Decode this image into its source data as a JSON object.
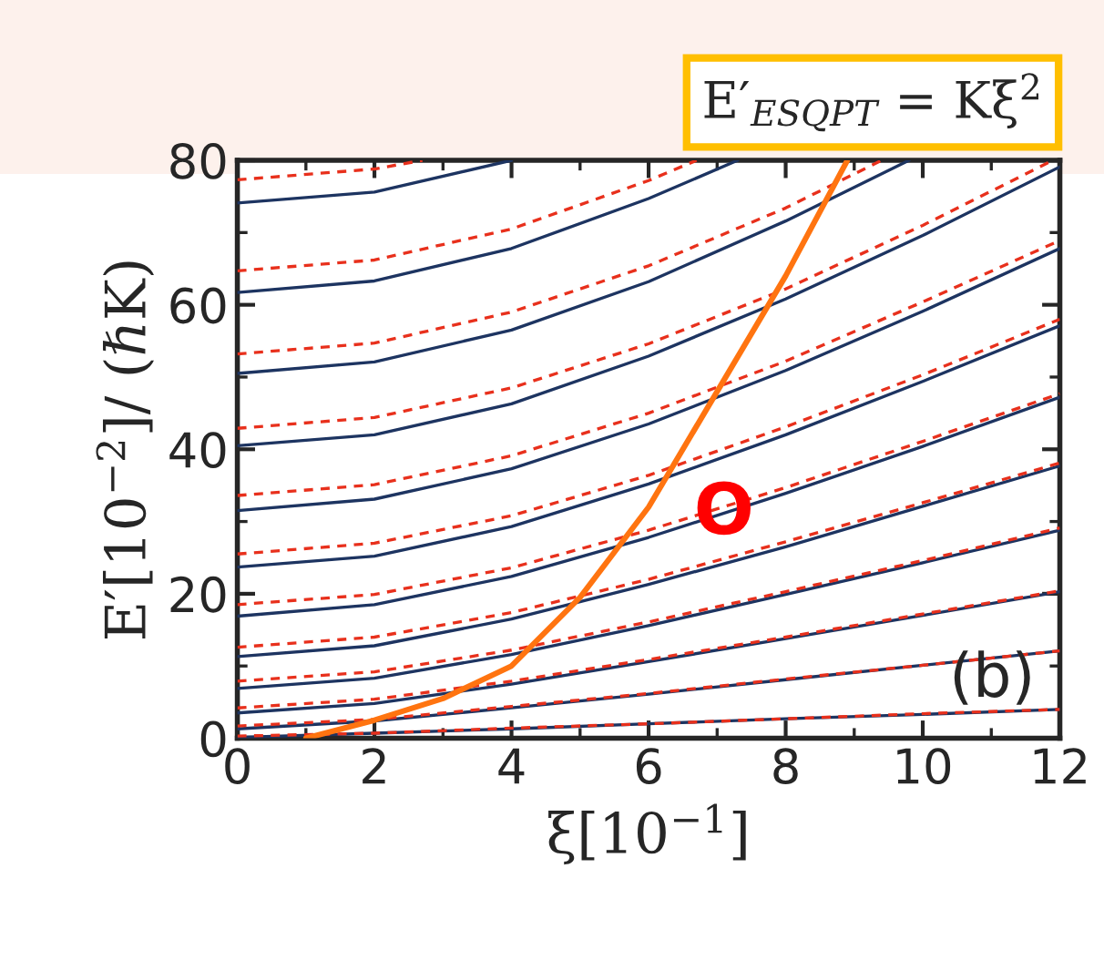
{
  "chart_data": {
    "type": "line",
    "xlabel": "ξ[10$^{−1}$]",
    "ylabel": "E′[10$^{−2}$]/ (ℏK)",
    "x": [
      0,
      2,
      4,
      6,
      8,
      10,
      12
    ],
    "xlim": [
      0,
      12
    ],
    "ylim": [
      0,
      80
    ],
    "xticks": [
      0,
      2,
      4,
      6,
      8,
      10,
      12
    ],
    "yticks": [
      0,
      20,
      40,
      60,
      80
    ],
    "grid": false,
    "legend": false,
    "marker": "none",
    "series": [
      {
        "color": "#1d3461",
        "line_style": "solid",
        "values": [
          0.1,
          0.7,
          1.3,
          2,
          2.7,
          3.3,
          4
        ]
      },
      {
        "color": "#e8301c",
        "line_style": "dashed",
        "values": [
          0.3,
          0.7,
          1.4,
          2,
          2.7,
          3.4,
          4
        ]
      },
      {
        "color": "#1d3461",
        "line_style": "solid",
        "values": [
          1.3,
          2.4,
          4.2,
          6.1,
          8.1,
          10.1,
          12.1
        ]
      },
      {
        "color": "#e8301c",
        "line_style": "dashed",
        "values": [
          1.7,
          2.6,
          4.4,
          6.2,
          8.2,
          10.1,
          12.1
        ]
      },
      {
        "color": "#1d3461",
        "line_style": "solid",
        "values": [
          3.5,
          4.8,
          7.5,
          10.6,
          13.8,
          17,
          20.3
        ]
      },
      {
        "color": "#e8301c",
        "line_style": "dashed",
        "values": [
          4.2,
          5.4,
          7.9,
          10.9,
          14,
          17.2,
          20.4
        ]
      },
      {
        "color": "#1d3461",
        "line_style": "solid",
        "values": [
          6.9,
          8.3,
          11.6,
          15.6,
          19.9,
          24.3,
          28.8
        ]
      },
      {
        "color": "#e8301c",
        "line_style": "dashed",
        "values": [
          7.9,
          9.2,
          12.2,
          16.1,
          20.3,
          24.6,
          29.1
        ]
      },
      {
        "color": "#1d3461",
        "line_style": "solid",
        "values": [
          11.3,
          12.8,
          16.5,
          21.3,
          26.5,
          32.1,
          37.7
        ]
      },
      {
        "color": "#e8301c",
        "line_style": "dashed",
        "values": [
          12.6,
          14,
          17.4,
          22,
          27.2,
          32.6,
          38.1
        ]
      },
      {
        "color": "#1d3461",
        "line_style": "solid",
        "values": [
          16.9,
          18.5,
          22.4,
          27.8,
          33.9,
          40.4,
          47.2
        ]
      },
      {
        "color": "#e8301c",
        "line_style": "dashed",
        "values": [
          18.5,
          19.9,
          23.6,
          28.8,
          34.7,
          41.1,
          47.7
        ]
      },
      {
        "color": "#1d3461",
        "line_style": "solid",
        "values": [
          23.7,
          25.2,
          29.3,
          35.2,
          42,
          49.4,
          57.1
        ]
      },
      {
        "color": "#e8301c",
        "line_style": "dashed",
        "values": [
          25.5,
          27,
          30.8,
          36.4,
          43.1,
          50.3,
          58
        ]
      },
      {
        "color": "#1d3461",
        "line_style": "solid",
        "values": [
          31.5,
          33.1,
          37.3,
          43.5,
          50.9,
          59.1,
          67.8
        ]
      },
      {
        "color": "#e8301c",
        "line_style": "dashed",
        "values": [
          33.6,
          35.1,
          39.1,
          45,
          52.2,
          60.4,
          68.9
        ]
      },
      {
        "color": "#1d3461",
        "line_style": "solid",
        "values": [
          40.5,
          42,
          46.3,
          52.9,
          60.8,
          69.6,
          79.1
        ]
      },
      {
        "color": "#e8301c",
        "line_style": "dashed",
        "x": [
          0,
          2,
          4,
          6,
          8,
          10,
          11.9
        ],
        "values": [
          42.9,
          44.4,
          48.5,
          54.6,
          62.2,
          71,
          80
        ]
      },
      {
        "color": "#1d3461",
        "line_style": "solid",
        "x": [
          0,
          2,
          4,
          6,
          8,
          9.8
        ],
        "values": [
          50.5,
          52.1,
          56.5,
          63.2,
          71.6,
          80
        ]
      },
      {
        "color": "#e8301c",
        "line_style": "dashed",
        "x": [
          0,
          2,
          4,
          6,
          8,
          9.4
        ],
        "values": [
          53.2,
          54.7,
          59,
          65.4,
          73.4,
          80
        ]
      },
      {
        "color": "#1d3461",
        "line_style": "solid",
        "x": [
          0,
          2,
          4,
          6,
          7.3
        ],
        "values": [
          61.7,
          63.3,
          67.8,
          74.7,
          80
        ]
      },
      {
        "color": "#e8301c",
        "line_style": "dashed",
        "x": [
          0,
          2,
          4,
          6,
          6.7
        ],
        "values": [
          64.7,
          66.2,
          70.5,
          77.2,
          80
        ]
      },
      {
        "color": "#1d3461",
        "line_style": "solid",
        "x": [
          0,
          2,
          4
        ],
        "values": [
          74.1,
          75.6,
          80
        ]
      },
      {
        "color": "#e8301c",
        "line_style": "dashed",
        "x": [
          0,
          2,
          2.7
        ],
        "values": [
          77.3,
          78.8,
          80
        ]
      },
      {
        "color": "#ff7410",
        "line_style": "solid",
        "x": [
          1,
          2,
          3,
          4,
          5,
          6,
          7,
          8,
          8.9
        ],
        "values": [
          0,
          2.5,
          5.5,
          10,
          19.5,
          32,
          48,
          64,
          80
        ]
      }
    ],
    "annotations": [
      "E′$_{ESQPT}$ = Kξ$^{2}$",
      {
        "text": "O",
        "x": 7.1,
        "y": 31
      },
      "(b)"
    ]
  }
}
